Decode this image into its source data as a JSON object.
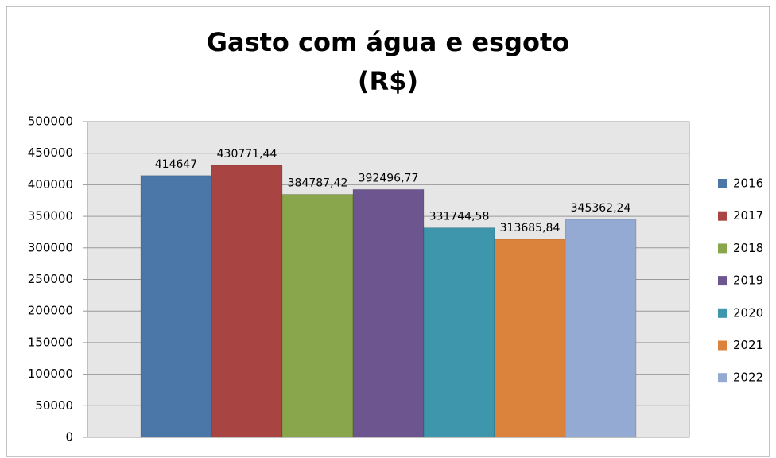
{
  "chart_data": {
    "type": "bar",
    "title": [
      "Gasto com água e esgoto",
      "(R$)"
    ],
    "categories": [
      null
    ],
    "series": [
      {
        "name": "2016",
        "color": "#4a76a8",
        "values": [
          414647
        ],
        "value_labels": [
          "414647"
        ]
      },
      {
        "name": "2017",
        "color": "#a84542",
        "values": [
          430771.44
        ],
        "value_labels": [
          "430771,44"
        ]
      },
      {
        "name": "2018",
        "color": "#8aa64c",
        "values": [
          384787.42
        ],
        "value_labels": [
          "384787,42"
        ]
      },
      {
        "name": "2019",
        "color": "#6d5690",
        "values": [
          392496.77
        ],
        "value_labels": [
          "392496,77"
        ]
      },
      {
        "name": "2020",
        "color": "#3e96ad",
        "values": [
          331744.58
        ],
        "value_labels": [
          "331744,58"
        ]
      },
      {
        "name": "2021",
        "color": "#db833c",
        "values": [
          313685.84
        ],
        "value_labels": [
          "313685,84"
        ]
      },
      {
        "name": "2022",
        "color": "#94aad3",
        "values": [
          345362.24
        ],
        "value_labels": [
          "345362,24"
        ]
      }
    ],
    "ylim": [
      0,
      500000
    ],
    "yticks": [
      0,
      50000,
      100000,
      150000,
      200000,
      250000,
      300000,
      350000,
      400000,
      450000,
      500000
    ],
    "grid": true,
    "legend": "right"
  }
}
